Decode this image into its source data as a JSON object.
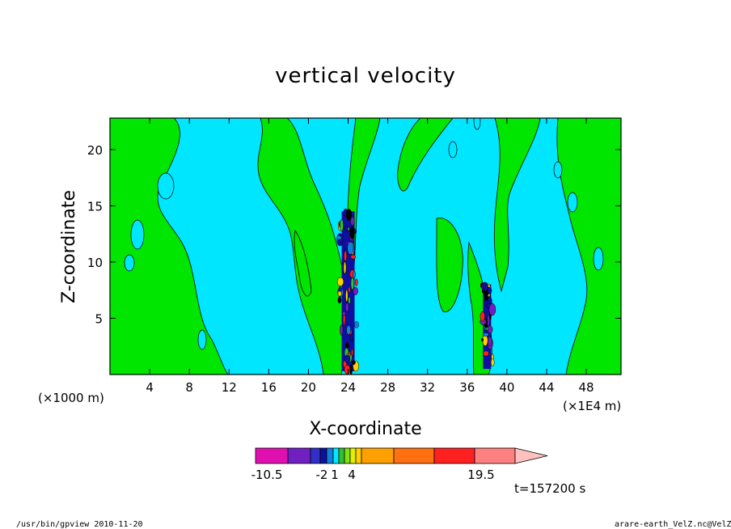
{
  "chart_data": {
    "type": "heatmap",
    "title": "vertical velocity",
    "xlabel": "X-coordinate",
    "ylabel": "Z-coordinate",
    "x_unit_left": "(×1000 m)",
    "x_unit_right": "(×1E4 m)",
    "xlim": [
      0,
      51.5
    ],
    "ylim": [
      0,
      22.8
    ],
    "x_ticks": [
      4,
      8,
      12,
      16,
      20,
      24,
      28,
      32,
      36,
      40,
      44,
      48
    ],
    "y_ticks": [
      5,
      10,
      15,
      20
    ],
    "time_label": "t=157200 s",
    "colorbar": {
      "colors": [
        "#e010b0",
        "#7020c0",
        "#3030c8",
        "#1010a0",
        "#1080e0",
        "#00e8ff",
        "#30c030",
        "#80e010",
        "#e0f000",
        "#ffd000",
        "#ffa000",
        "#ff7010",
        "#ff2020",
        "#ff8080",
        "#ffc0c0"
      ],
      "labels": [
        "-10.5",
        "-2",
        "1",
        "4",
        "19.5"
      ]
    },
    "background_color": "#00e6ff",
    "positive_color": "#00e600",
    "updraft_cores": [
      {
        "x": 24.0,
        "z_min": 0.3,
        "z_max": 14.5
      },
      {
        "x": 38.0,
        "z_min": 0.5,
        "z_max": 8.0
      }
    ]
  },
  "footer": {
    "left": "/usr/bin/gpview   2010-11-20",
    "right": "arare-earth_VelZ.nc@VelZ"
  }
}
